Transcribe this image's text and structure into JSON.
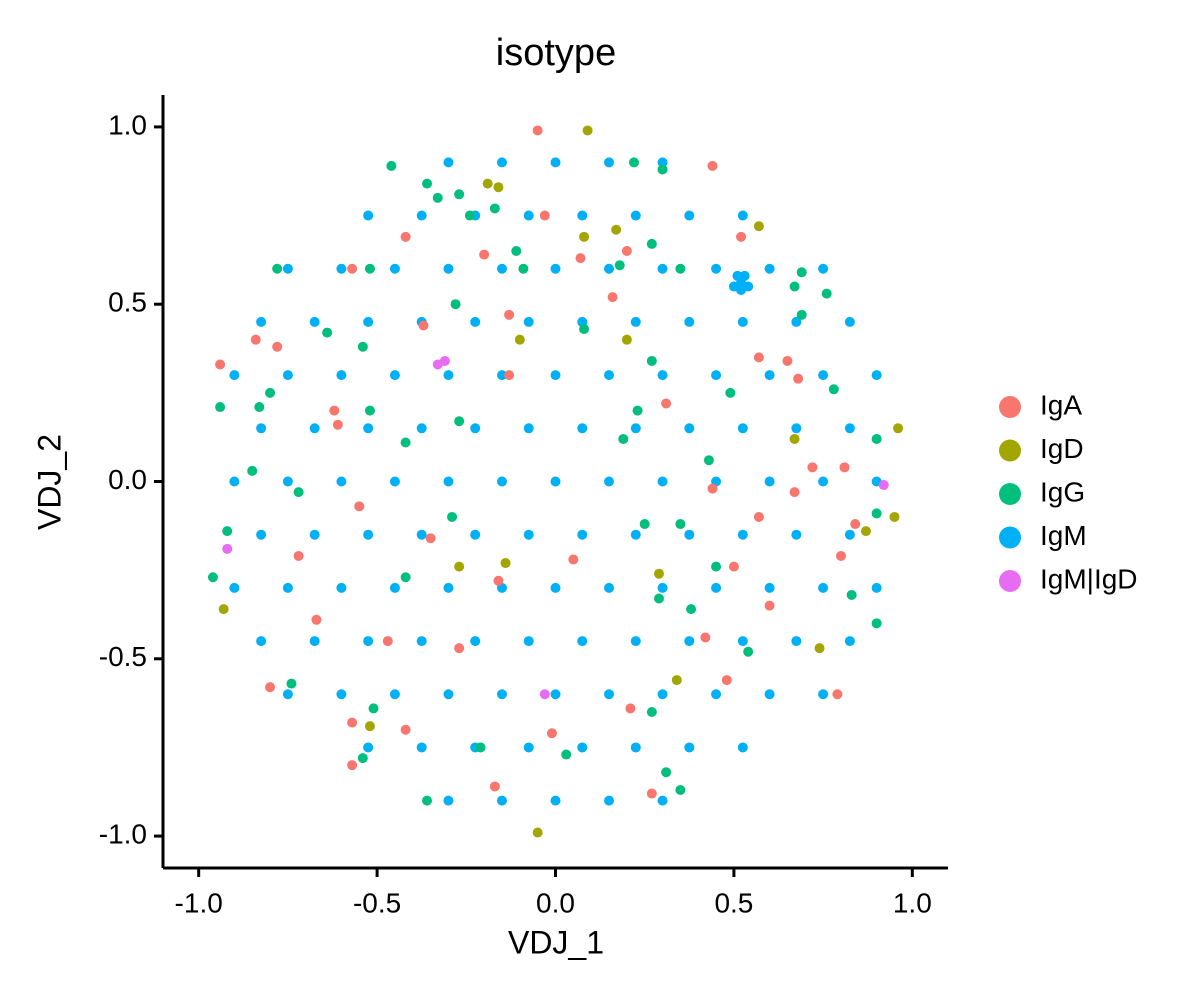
{
  "chart_data": {
    "type": "scatter",
    "title": "isotype",
    "x_label": "VDJ_1",
    "y_label": "VDJ_2",
    "xlim": [
      -1.1,
      1.1
    ],
    "ylim": [
      -1.09,
      1.09
    ],
    "xticks": [
      {
        "value": -1,
        "label": "-1.0"
      },
      -0.5,
      {
        "value": 0,
        "label": "0.0"
      },
      0.5,
      {
        "value": 1,
        "label": "1.0"
      }
    ],
    "yticks": [
      {
        "value": -1,
        "label": "-1.0"
      },
      -0.5,
      {
        "value": 0,
        "label": "0.0"
      },
      0.5,
      {
        "value": 1,
        "label": "1.0"
      }
    ],
    "series": [
      {
        "name": "IgA",
        "color": "#F8766D",
        "x": [
          -0.05,
          0.44,
          -0.03,
          -0.42,
          -0.2,
          0.07,
          0.2,
          0.52,
          -0.57,
          0.16,
          -0.13,
          -0.37,
          -0.84,
          -0.78,
          -0.94,
          0.57,
          0.65,
          -0.13,
          0.68,
          -0.62,
          0.31,
          -0.61,
          0.72,
          0.81,
          0.44,
          0.67,
          -0.55,
          0.57,
          0.84,
          -0.35,
          -0.72,
          0.05,
          0.8,
          0.5,
          -0.16,
          0.6,
          -0.67,
          -0.47,
          0.42,
          -0.27,
          -0.8,
          0.48,
          0.79,
          0.21,
          -0.57,
          -0.42,
          -0.01,
          -0.57,
          -0.17,
          0.27
        ],
        "y": [
          0.99,
          0.89,
          0.75,
          0.69,
          0.64,
          0.63,
          0.65,
          0.69,
          0.6,
          0.52,
          0.47,
          0.44,
          0.4,
          0.38,
          0.33,
          0.35,
          0.34,
          0.3,
          0.29,
          0.2,
          0.22,
          0.16,
          0.04,
          0.04,
          -0.02,
          -0.03,
          -0.07,
          -0.1,
          -0.12,
          -0.16,
          -0.21,
          -0.22,
          -0.21,
          -0.24,
          -0.28,
          -0.35,
          -0.39,
          -0.45,
          -0.44,
          -0.47,
          -0.58,
          -0.56,
          -0.6,
          -0.64,
          -0.68,
          -0.7,
          -0.71,
          -0.8,
          -0.86,
          -0.88
        ]
      },
      {
        "name": "IgD",
        "color": "#A3A500",
        "x": [
          0.09,
          -0.19,
          -0.16,
          0.08,
          0.17,
          0.57,
          -0.1,
          0.2,
          0.67,
          0.96,
          0.87,
          0.95,
          -0.93,
          -0.27,
          -0.14,
          0.29,
          0.74,
          0.34,
          -0.52,
          -0.05
        ],
        "y": [
          0.99,
          0.84,
          0.83,
          0.69,
          0.71,
          0.72,
          0.4,
          0.4,
          0.12,
          0.15,
          -0.14,
          -0.1,
          -0.36,
          -0.24,
          -0.23,
          -0.26,
          -0.47,
          -0.56,
          -0.69,
          -0.99
        ]
      },
      {
        "name": "IgG",
        "color": "#00BF7D",
        "x": [
          -0.46,
          -0.36,
          -0.27,
          -0.33,
          -0.17,
          -0.24,
          -0.11,
          0.22,
          0.3,
          -0.78,
          -0.52,
          -0.09,
          0.18,
          0.27,
          0.35,
          0.69,
          0.67,
          0.76,
          0.69,
          -0.28,
          0.08,
          -0.64,
          -0.54,
          0.27,
          -0.8,
          -0.94,
          -0.83,
          -0.52,
          0.23,
          0.49,
          0.78,
          -0.27,
          -0.42,
          0.19,
          0.9,
          0.43,
          -0.85,
          -0.72,
          0.9,
          -0.29,
          0.25,
          0.35,
          -0.92,
          0.45,
          -0.96,
          -0.42,
          0.83,
          0.29,
          0.38,
          0.9,
          0.54,
          -0.74,
          -0.51,
          0.27,
          -0.21,
          -0.54,
          0.03,
          0.31,
          0.35,
          -0.36
        ],
        "y": [
          0.89,
          0.84,
          0.81,
          0.8,
          0.77,
          0.75,
          0.65,
          0.9,
          0.88,
          0.6,
          0.6,
          0.6,
          0.61,
          0.67,
          0.6,
          0.59,
          0.55,
          0.53,
          0.47,
          0.5,
          0.43,
          0.42,
          0.38,
          0.34,
          0.25,
          0.21,
          0.21,
          0.2,
          0.2,
          0.25,
          0.26,
          0.17,
          0.11,
          0.12,
          0.12,
          0.06,
          0.03,
          -0.03,
          -0.09,
          -0.1,
          -0.12,
          -0.12,
          -0.14,
          -0.24,
          -0.27,
          -0.27,
          -0.32,
          -0.33,
          -0.36,
          -0.4,
          -0.48,
          -0.57,
          -0.64,
          -0.65,
          -0.75,
          -0.78,
          -0.77,
          -0.82,
          -0.87,
          -0.9
        ]
      },
      {
        "name": "IgM",
        "color": "#00B0F6",
        "x": [
          -0.3,
          -0.15,
          0,
          0.15,
          0.3,
          -0.525,
          -0.375,
          -0.225,
          -0.075,
          0.075,
          0.225,
          0.375,
          0.525,
          -0.75,
          -0.6,
          -0.45,
          -0.3,
          -0.15,
          0,
          0.15,
          0.3,
          0.45,
          0.6,
          0.75,
          -0.825,
          -0.675,
          -0.525,
          -0.375,
          -0.225,
          -0.075,
          0.075,
          0.225,
          0.375,
          0.525,
          0.675,
          0.825,
          -0.9,
          -0.75,
          -0.6,
          -0.45,
          -0.3,
          -0.15,
          0,
          0.15,
          0.3,
          0.45,
          0.6,
          0.75,
          0.9,
          -0.825,
          -0.675,
          -0.525,
          -0.375,
          -0.225,
          -0.075,
          0.075,
          0.225,
          0.375,
          0.525,
          0.675,
          0.825,
          -0.9,
          -0.75,
          -0.6,
          -0.45,
          -0.3,
          -0.15,
          0,
          0.15,
          0.3,
          0.45,
          0.6,
          0.75,
          0.9,
          -0.825,
          -0.675,
          -0.525,
          -0.375,
          -0.225,
          -0.075,
          0.075,
          0.225,
          0.375,
          0.525,
          0.675,
          0.825,
          -0.9,
          -0.75,
          -0.6,
          -0.45,
          -0.3,
          -0.15,
          0,
          0.15,
          0.3,
          0.45,
          0.6,
          0.75,
          0.9,
          -0.825,
          -0.675,
          -0.525,
          -0.375,
          -0.225,
          -0.075,
          0.075,
          0.225,
          0.375,
          0.525,
          0.675,
          0.825,
          -0.75,
          -0.6,
          -0.45,
          -0.3,
          -0.15,
          0,
          0.15,
          0.3,
          0.45,
          0.6,
          0.75,
          -0.525,
          -0.375,
          -0.225,
          -0.075,
          0.075,
          0.225,
          0.375,
          0.525,
          -0.3,
          -0.15,
          0,
          0.15,
          0.3,
          0.51,
          0.53,
          0.52,
          0.5,
          0.54,
          0.52
        ],
        "y": [
          -0.9,
          -0.9,
          -0.9,
          -0.9,
          -0.9,
          -0.75,
          -0.75,
          -0.75,
          -0.75,
          -0.75,
          -0.75,
          -0.75,
          -0.75,
          -0.6,
          -0.6,
          -0.6,
          -0.6,
          -0.6,
          -0.6,
          -0.6,
          -0.6,
          -0.6,
          -0.6,
          -0.6,
          -0.45,
          -0.45,
          -0.45,
          -0.45,
          -0.45,
          -0.45,
          -0.45,
          -0.45,
          -0.45,
          -0.45,
          -0.45,
          -0.45,
          -0.3,
          -0.3,
          -0.3,
          -0.3,
          -0.3,
          -0.3,
          -0.3,
          -0.3,
          -0.3,
          -0.3,
          -0.3,
          -0.3,
          -0.3,
          -0.15,
          -0.15,
          -0.15,
          -0.15,
          -0.15,
          -0.15,
          -0.15,
          -0.15,
          -0.15,
          -0.15,
          -0.15,
          -0.15,
          0,
          0,
          0,
          0,
          0,
          0,
          0,
          0,
          0,
          0,
          0,
          0,
          0,
          0.15,
          0.15,
          0.15,
          0.15,
          0.15,
          0.15,
          0.15,
          0.15,
          0.15,
          0.15,
          0.15,
          0.15,
          0.3,
          0.3,
          0.3,
          0.3,
          0.3,
          0.3,
          0.3,
          0.3,
          0.3,
          0.3,
          0.3,
          0.3,
          0.3,
          0.45,
          0.45,
          0.45,
          0.45,
          0.45,
          0.45,
          0.45,
          0.45,
          0.45,
          0.45,
          0.45,
          0.45,
          0.6,
          0.6,
          0.6,
          0.6,
          0.6,
          0.6,
          0.6,
          0.6,
          0.6,
          0.6,
          0.6,
          0.75,
          0.75,
          0.75,
          0.75,
          0.75,
          0.75,
          0.75,
          0.75,
          0.9,
          0.9,
          0.9,
          0.9,
          0.9,
          0.58,
          0.58,
          0.56,
          0.55,
          0.55,
          0.54
        ]
      },
      {
        "name": "IgM|IgD",
        "color": "#E76BF3",
        "x": [
          -0.33,
          -0.31,
          -0.92,
          0.92,
          -0.03
        ],
        "y": [
          0.33,
          0.34,
          -0.19,
          -0.01,
          -0.6
        ]
      }
    ]
  }
}
